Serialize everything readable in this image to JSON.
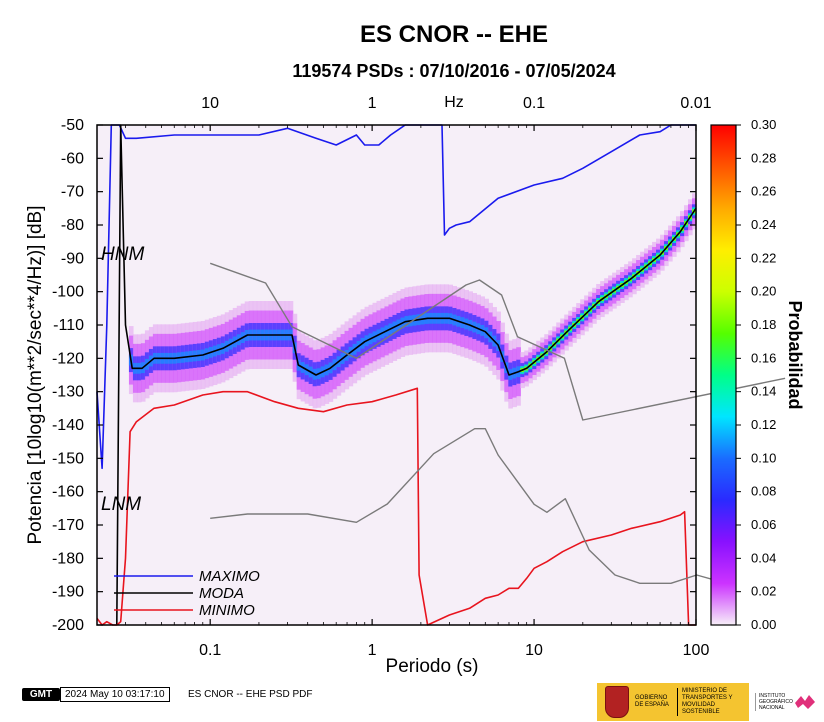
{
  "chart_data": {
    "type": "heatmap",
    "title": "ES CNOR -- EHE",
    "subtitle": "119574 PSDs : 07/10/2016 - 07/05/2024",
    "xlabel": "Periodo (s)",
    "ylabel": "Potencia [10log10(m**2/sec**4/Hz)] [dB]",
    "x_scale": "log",
    "xlim": [
      0.02,
      100
    ],
    "ylim": [
      -200,
      -50
    ],
    "x_ticks": [
      0.1,
      1,
      10,
      100
    ],
    "x_tick_labels": [
      "0.1",
      "1",
      "10",
      "100"
    ],
    "y_ticks": [
      -200,
      -190,
      -180,
      -170,
      -160,
      -150,
      -140,
      -130,
      -120,
      -110,
      -100,
      -90,
      -80,
      -70,
      -60,
      -50
    ],
    "y_tick_labels": [
      "-200",
      "-190",
      "-180",
      "-170",
      "-160",
      "-150",
      "-140",
      "-130",
      "-120",
      "-110",
      "-100",
      "-90",
      "-80",
      "-70",
      "-60",
      "-50"
    ],
    "top_axis": {
      "unit_label": "Hz",
      "ticks": [
        10,
        1,
        0.1,
        0.01
      ],
      "tick_labels": [
        "10",
        "1",
        "0.1",
        "0.01"
      ]
    },
    "colorbar": {
      "label": "Probabilidad",
      "range": [
        0,
        0.3
      ],
      "ticks": [
        0,
        0.02,
        0.04,
        0.06,
        0.08,
        0.1,
        0.12,
        0.14,
        0.16,
        0.18,
        0.2,
        0.22,
        0.24,
        0.26,
        0.28,
        0.3
      ],
      "tick_labels": [
        "0.00",
        "0.02",
        "0.04",
        "0.06",
        "0.08",
        "0.10",
        "0.12",
        "0.14",
        "0.16",
        "0.18",
        "0.20",
        "0.22",
        "0.24",
        "0.26",
        "0.28",
        "0.30"
      ],
      "colors": [
        "#f6eff8",
        "#cc33ff",
        "#8811ff",
        "#2a2aff",
        "#1a6cff",
        "#00e6ff",
        "#00ff88",
        "#55ff00",
        "#ccff00",
        "#ffee00",
        "#ffaa00",
        "#ff5500",
        "#ff0000"
      ]
    },
    "annotations": [
      "HNM",
      "LNM"
    ],
    "series": [
      {
        "name": "MAXIMO",
        "color": "#1a1aee",
        "x": [
          0.02,
          0.0215,
          0.023,
          0.0245,
          0.026,
          0.0275,
          0.03,
          0.035,
          0.06,
          0.2,
          0.3,
          0.45,
          0.6,
          0.8,
          0.9,
          1.1,
          1.3,
          1.6,
          2.3,
          2.7,
          2.8,
          3,
          3.3,
          4,
          6,
          10,
          15,
          20,
          30,
          45,
          60,
          70,
          100
        ],
        "y": [
          -130,
          -153,
          -110,
          -50,
          -50,
          -50,
          -54,
          -54,
          -53,
          -53,
          -51,
          -54,
          -56,
          -53,
          -56,
          -56,
          -53,
          -50,
          -50,
          -50,
          -83,
          -81,
          -80,
          -79,
          -72,
          -68,
          -66,
          -63,
          -58,
          -53,
          -52,
          -50,
          -50
        ]
      },
      {
        "name": "MODA",
        "color": "#000000",
        "x": [
          0.0265,
          0.028,
          0.03,
          0.033,
          0.038,
          0.045,
          0.06,
          0.09,
          0.12,
          0.17,
          0.25,
          0.32,
          0.35,
          0.45,
          0.55,
          0.7,
          0.9,
          1.2,
          1.6,
          2.2,
          3,
          4,
          5,
          6,
          7,
          8,
          9,
          12,
          16,
          25,
          40,
          60,
          80,
          100
        ],
        "y": [
          -200,
          -50,
          -110,
          -123,
          -123,
          -120,
          -120,
          -119,
          -117,
          -113,
          -113,
          -113,
          -122,
          -125,
          -123,
          -119,
          -115,
          -112,
          -109,
          -108,
          -108,
          -110,
          -112,
          -116,
          -125,
          -124,
          -123,
          -118,
          -112,
          -103,
          -96,
          -89,
          -82,
          -75
        ]
      },
      {
        "name": "MINIMO",
        "color": "#e8141e",
        "x": [
          0.02,
          0.0215,
          0.023,
          0.025,
          0.0265,
          0.028,
          0.03,
          0.032,
          0.035,
          0.045,
          0.06,
          0.09,
          0.12,
          0.17,
          0.25,
          0.35,
          0.5,
          0.7,
          1.0,
          1.4,
          1.9,
          1.95,
          2.2,
          3,
          4,
          5,
          6,
          7,
          8,
          9,
          10,
          12,
          15,
          20,
          30,
          40,
          60,
          80,
          85,
          90,
          100
        ],
        "y": [
          -198,
          -200,
          -199,
          -200,
          -200,
          -199,
          -180,
          -142,
          -139,
          -135,
          -134,
          -131,
          -130,
          -130,
          -133,
          -135,
          -136,
          -134,
          -133,
          -131,
          -129,
          -185,
          -200,
          -197,
          -195,
          -192,
          -191,
          -189,
          -189,
          -186,
          -183,
          -181,
          -178,
          -175,
          -173,
          -171,
          -169,
          -167,
          -166,
          -200,
          -200
        ]
      },
      {
        "name": "HNM",
        "color": "#7a7a7a",
        "x": [
          0.1,
          0.22,
          0.32,
          0.8,
          3.8,
          4.6,
          6.3,
          7.9,
          15.4,
          20,
          354.8
        ],
        "y": [
          -91.5,
          -97.4,
          -110.5,
          -120.0,
          -98.0,
          -96.5,
          -101.0,
          -113.5,
          -120.0,
          -138.5,
          -126.0
        ]
      },
      {
        "name": "LNM",
        "color": "#7a7a7a",
        "x": [
          0.1,
          0.17,
          0.4,
          0.8,
          1.24,
          2.4,
          4.3,
          5,
          6,
          10,
          12,
          15.6,
          21.9,
          31.6,
          45,
          70,
          101,
          154
        ],
        "y": [
          -168.0,
          -166.7,
          -166.7,
          -169.2,
          -163.7,
          -148.6,
          -141.1,
          -141.1,
          -149.0,
          -163.8,
          -166.2,
          -162.1,
          -177.5,
          -185.0,
          -187.5,
          -187.5,
          -185.0,
          -187.5
        ]
      }
    ],
    "legend": {
      "position": "bottom-left",
      "entries": [
        "MAXIMO",
        "MODA",
        "MINIMO"
      ]
    }
  },
  "footer": {
    "logo": "GMT",
    "timestamp": "2024 May 10 03:17:10",
    "label": "ES CNOR -- EHE PSD PDF",
    "gov_text_1": "GOBIERNO DE ESPAÑA",
    "gov_text_2": "MINISTERIO DE TRANSPORTES Y MOVILIDAD SOSTENIBLE",
    "ign_text": "INSTITUTO GEOGRÁFICO NACIONAL"
  }
}
